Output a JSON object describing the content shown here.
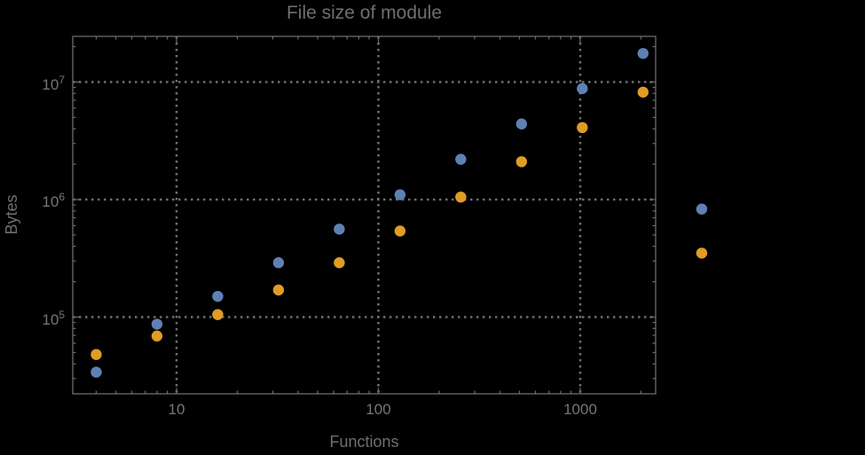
{
  "chart_data": {
    "type": "scatter",
    "title": "File size of module",
    "xlabel": "Functions",
    "ylabel": "Bytes",
    "x_scale": "log",
    "y_scale": "log",
    "x_range": [
      3.1,
      2340
    ],
    "y_range": [
      22500,
      24500000
    ],
    "legend": "none",
    "grid": {
      "style": "dotted",
      "x_lines": [
        10,
        100,
        1000
      ],
      "y_lines": [
        100000,
        1000000,
        10000000
      ]
    },
    "x_ticks": [
      {
        "value": 10,
        "label": "10"
      },
      {
        "value": 100,
        "label": "100"
      },
      {
        "value": 1000,
        "label": "1000"
      }
    ],
    "y_ticks": [
      {
        "value": 100000,
        "base": "10",
        "exponent": "5"
      },
      {
        "value": 1000000,
        "base": "10",
        "exponent": "6"
      },
      {
        "value": 10000000,
        "base": "10",
        "exponent": "7"
      }
    ],
    "series": [
      {
        "name": "blue-series",
        "color": "#5e81b5",
        "x": [
          4,
          8,
          16,
          32,
          64,
          128,
          256,
          512,
          1024,
          2048,
          4000
        ],
        "y": [
          34000,
          87000,
          150000,
          290000,
          560000,
          1100000,
          2200000,
          4400000,
          8800000,
          17500000,
          830000
        ]
      },
      {
        "name": "orange-series",
        "color": "#e19c24",
        "x": [
          4,
          8,
          16,
          32,
          64,
          128,
          256,
          512,
          1024,
          2048,
          4000
        ],
        "y": [
          48000,
          69000,
          105000,
          170000,
          290000,
          540000,
          1050000,
          2100000,
          4100000,
          8200000,
          350000
        ]
      }
    ]
  },
  "colors": {
    "background": "#000000",
    "frame": "#6b6b6b",
    "grid": "#6f6f6f",
    "tick_text": "#767676",
    "label_text": "#6f6f6f",
    "series_blue": "#5e81b5",
    "series_orange": "#e19c24"
  }
}
